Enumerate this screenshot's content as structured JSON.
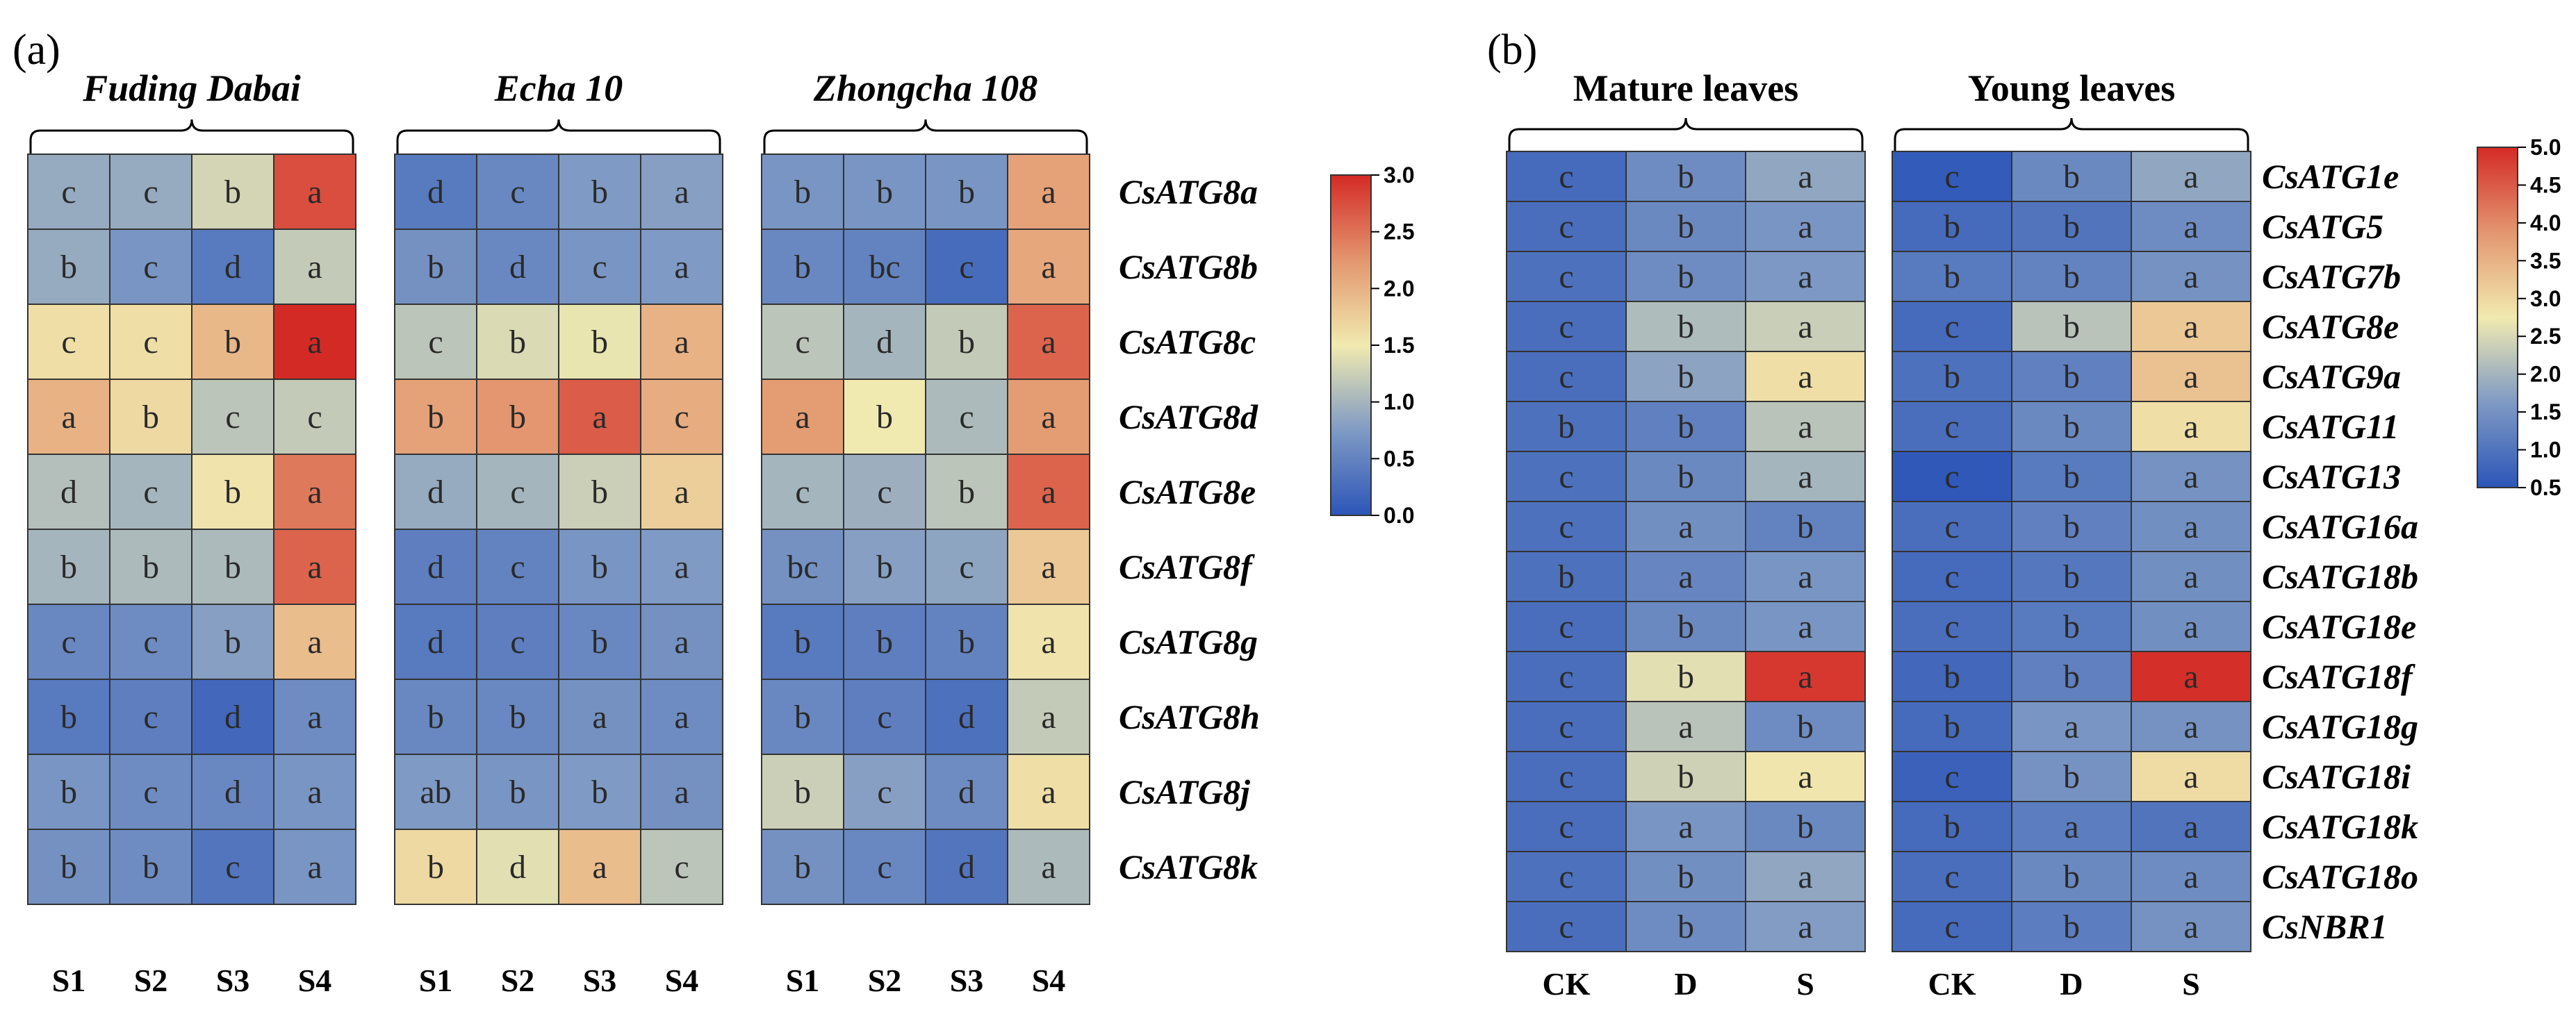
{
  "colors": {
    "low": "#2c55b8",
    "mid": "#f1eab0",
    "high": "#d42a26"
  },
  "panel_a": {
    "label": "(a)",
    "groups": [
      {
        "title": "Fuding Dabai",
        "cols": [
          "S1",
          "S2",
          "S3",
          "S4"
        ],
        "values": [
          [
            0.9,
            0.9,
            1.3,
            2.75
          ],
          [
            0.9,
            0.7,
            0.4,
            1.2
          ],
          [
            1.6,
            1.6,
            1.95,
            3.0
          ],
          [
            2.0,
            1.65,
            1.15,
            1.2
          ],
          [
            1.1,
            1.0,
            1.55,
            2.45
          ],
          [
            1.0,
            1.05,
            1.05,
            2.6
          ],
          [
            0.55,
            0.6,
            0.8,
            1.9
          ],
          [
            0.4,
            0.45,
            0.2,
            0.6
          ],
          [
            0.7,
            0.6,
            0.55,
            0.7
          ],
          [
            0.65,
            0.6,
            0.35,
            0.7
          ]
        ],
        "letters": [
          [
            "c",
            "c",
            "b",
            "a"
          ],
          [
            "b",
            "c",
            "d",
            "a"
          ],
          [
            "c",
            "c",
            "b",
            "a"
          ],
          [
            "a",
            "b",
            "c",
            "c"
          ],
          [
            "d",
            "c",
            "b",
            "a"
          ],
          [
            "b",
            "b",
            "b",
            "a"
          ],
          [
            "c",
            "c",
            "b",
            "a"
          ],
          [
            "b",
            "c",
            "d",
            "a"
          ],
          [
            "b",
            "c",
            "d",
            "a"
          ],
          [
            "b",
            "b",
            "c",
            "a"
          ]
        ]
      },
      {
        "title": "Echa 10",
        "cols": [
          "S1",
          "S2",
          "S3",
          "S4"
        ],
        "values": [
          [
            0.4,
            0.55,
            0.75,
            0.8
          ],
          [
            0.65,
            0.55,
            0.7,
            0.75
          ],
          [
            1.15,
            1.35,
            1.45,
            2.0
          ],
          [
            2.15,
            2.25,
            2.65,
            2.05
          ],
          [
            0.9,
            1.0,
            1.25,
            1.75
          ],
          [
            0.45,
            0.5,
            0.7,
            0.75
          ],
          [
            0.4,
            0.45,
            0.55,
            0.65
          ],
          [
            0.55,
            0.55,
            0.65,
            0.6
          ],
          [
            0.75,
            0.7,
            0.75,
            0.65
          ],
          [
            1.65,
            1.4,
            1.9,
            1.15
          ]
        ],
        "letters": [
          [
            "d",
            "c",
            "b",
            "a"
          ],
          [
            "b",
            "d",
            "c",
            "a"
          ],
          [
            "c",
            "b",
            "b",
            "a"
          ],
          [
            "b",
            "b",
            "a",
            "c"
          ],
          [
            "d",
            "c",
            "b",
            "a"
          ],
          [
            "d",
            "c",
            "b",
            "a"
          ],
          [
            "d",
            "c",
            "b",
            "a"
          ],
          [
            "b",
            "b",
            "a",
            "a"
          ],
          [
            "ab",
            "b",
            "b",
            "a"
          ],
          [
            "b",
            "d",
            "a",
            "c"
          ]
        ]
      },
      {
        "title": "Zhongcha 108",
        "cols": [
          "S1",
          "S2",
          "S3",
          "S4"
        ],
        "values": [
          [
            0.7,
            0.7,
            0.7,
            2.15
          ],
          [
            0.55,
            0.5,
            0.25,
            2.1
          ],
          [
            1.15,
            1.0,
            1.2,
            2.6
          ],
          [
            2.2,
            1.5,
            1.05,
            2.2
          ],
          [
            1.0,
            0.95,
            1.15,
            2.6
          ],
          [
            0.65,
            0.8,
            0.85,
            1.8
          ],
          [
            0.4,
            0.45,
            0.5,
            1.55
          ],
          [
            0.55,
            0.45,
            0.3,
            1.2
          ],
          [
            1.25,
            0.8,
            0.6,
            1.6
          ],
          [
            0.65,
            0.55,
            0.35,
            1.05
          ]
        ],
        "letters": [
          [
            "b",
            "b",
            "b",
            "a"
          ],
          [
            "b",
            "bc",
            "c",
            "a"
          ],
          [
            "c",
            "d",
            "b",
            "a"
          ],
          [
            "a",
            "b",
            "c",
            "a"
          ],
          [
            "c",
            "c",
            "b",
            "a"
          ],
          [
            "bc",
            "b",
            "c",
            "a"
          ],
          [
            "b",
            "b",
            "b",
            "a"
          ],
          [
            "b",
            "c",
            "d",
            "a"
          ],
          [
            "b",
            "c",
            "d",
            "a"
          ],
          [
            "b",
            "c",
            "d",
            "a"
          ]
        ]
      }
    ],
    "genes": [
      "CsATG8a",
      "CsATG8b",
      "CsATG8c",
      "CsATG8d",
      "CsATG8e",
      "CsATG8f",
      "CsATG8g",
      "CsATG8h",
      "CsATG8j",
      "CsATG8k"
    ],
    "colorbar": {
      "ticks": [
        "3.0",
        "2.5",
        "2.0",
        "1.5",
        "1.0",
        "0.5",
        "0.0"
      ],
      "min": 0.0,
      "max": 3.0
    }
  },
  "panel_b": {
    "label": "(b)",
    "groups": [
      {
        "title": "Mature leaves",
        "cols": [
          "CK",
          "D",
          "S"
        ],
        "values": [
          [
            0.85,
            1.4,
            1.8
          ],
          [
            0.9,
            1.35,
            1.55
          ],
          [
            0.95,
            1.4,
            1.6
          ],
          [
            0.9,
            2.1,
            2.35
          ],
          [
            0.9,
            1.75,
            2.9
          ],
          [
            0.95,
            1.2,
            2.2
          ],
          [
            0.95,
            1.35,
            2.0
          ],
          [
            0.95,
            1.45,
            1.25
          ],
          [
            0.95,
            1.3,
            1.55
          ],
          [
            0.9,
            1.35,
            1.55
          ],
          [
            0.9,
            2.6,
            4.85
          ],
          [
            0.9,
            2.2,
            1.4
          ],
          [
            0.9,
            2.4,
            2.8
          ],
          [
            0.9,
            1.55,
            1.35
          ],
          [
            0.95,
            1.45,
            1.8
          ],
          [
            0.9,
            1.4,
            1.65
          ]
        ],
        "letters": [
          [
            "c",
            "b",
            "a"
          ],
          [
            "c",
            "b",
            "a"
          ],
          [
            "c",
            "b",
            "a"
          ],
          [
            "c",
            "b",
            "a"
          ],
          [
            "c",
            "b",
            "a"
          ],
          [
            "b",
            "b",
            "a"
          ],
          [
            "c",
            "b",
            "a"
          ],
          [
            "c",
            "a",
            "b"
          ],
          [
            "b",
            "a",
            "a"
          ],
          [
            "c",
            "b",
            "a"
          ],
          [
            "c",
            "b",
            "a"
          ],
          [
            "c",
            "a",
            "b"
          ],
          [
            "c",
            "b",
            "a"
          ],
          [
            "c",
            "a",
            "b"
          ],
          [
            "c",
            "b",
            "a"
          ],
          [
            "c",
            "b",
            "a"
          ]
        ]
      },
      {
        "title": "Young leaves",
        "cols": [
          "CK",
          "D",
          "S"
        ],
        "values": [
          [
            0.6,
            1.35,
            1.8
          ],
          [
            0.85,
            1.0,
            1.4
          ],
          [
            1.1,
            1.25,
            1.5
          ],
          [
            0.85,
            2.2,
            3.2
          ],
          [
            0.95,
            1.2,
            3.3
          ],
          [
            0.9,
            1.35,
            2.9
          ],
          [
            0.55,
            1.1,
            1.5
          ],
          [
            0.9,
            1.2,
            1.45
          ],
          [
            0.85,
            1.05,
            1.45
          ],
          [
            0.9,
            1.1,
            1.45
          ],
          [
            0.8,
            1.2,
            4.95
          ],
          [
            0.85,
            1.55,
            1.5
          ],
          [
            0.7,
            1.5,
            2.95
          ],
          [
            0.85,
            1.15,
            1.0
          ],
          [
            0.9,
            1.35,
            1.4
          ],
          [
            0.85,
            1.15,
            1.5
          ]
        ],
        "letters": [
          [
            "c",
            "b",
            "a"
          ],
          [
            "b",
            "b",
            "a"
          ],
          [
            "b",
            "b",
            "a"
          ],
          [
            "c",
            "b",
            "a"
          ],
          [
            "b",
            "b",
            "a"
          ],
          [
            "c",
            "b",
            "a"
          ],
          [
            "c",
            "b",
            "a"
          ],
          [
            "c",
            "b",
            "a"
          ],
          [
            "c",
            "b",
            "a"
          ],
          [
            "c",
            "b",
            "a"
          ],
          [
            "b",
            "b",
            "a"
          ],
          [
            "b",
            "a",
            "a"
          ],
          [
            "c",
            "b",
            "a"
          ],
          [
            "b",
            "a",
            "a"
          ],
          [
            "c",
            "b",
            "a"
          ],
          [
            "c",
            "b",
            "a"
          ]
        ]
      }
    ],
    "genes": [
      "CsATG1e",
      "CsATG5",
      "CsATG7b",
      "CsATG8e",
      "CsATG9a",
      "CsATG11",
      "CsATG13",
      "CsATG16a",
      "CsATG18b",
      "CsATG18e",
      "CsATG18f",
      "CsATG18g",
      "CsATG18i",
      "CsATG18k",
      "CsATG18o",
      "CsNBR1"
    ],
    "colorbar": {
      "ticks": [
        "5.0",
        "4.5",
        "4.0",
        "3.5",
        "3.0",
        "2.5",
        "2.0",
        "1.5",
        "1.0",
        "0.5"
      ],
      "min": 0.5,
      "max": 5.0
    }
  },
  "chart_data": [
    {
      "type": "heatmap",
      "title": "(a)",
      "groups": [
        "Fuding Dabai",
        "Echa 10",
        "Zhongcha 108"
      ],
      "columns": [
        "S1",
        "S2",
        "S3",
        "S4"
      ],
      "rows": [
        "CsATG8a",
        "CsATG8b",
        "CsATG8c",
        "CsATG8d",
        "CsATG8e",
        "CsATG8f",
        "CsATG8g",
        "CsATG8h",
        "CsATG8j",
        "CsATG8k"
      ],
      "color_range": [
        0.0,
        3.0
      ]
    },
    {
      "type": "heatmap",
      "title": "(b)",
      "groups": [
        "Mature leaves",
        "Young leaves"
      ],
      "columns": [
        "CK",
        "D",
        "S"
      ],
      "rows": [
        "CsATG1e",
        "CsATG5",
        "CsATG7b",
        "CsATG8e",
        "CsATG9a",
        "CsATG11",
        "CsATG13",
        "CsATG16a",
        "CsATG18b",
        "CsATG18e",
        "CsATG18f",
        "CsATG18g",
        "CsATG18i",
        "CsATG18k",
        "CsATG18o",
        "CsNBR1"
      ],
      "color_range": [
        0.5,
        5.0
      ]
    }
  ]
}
